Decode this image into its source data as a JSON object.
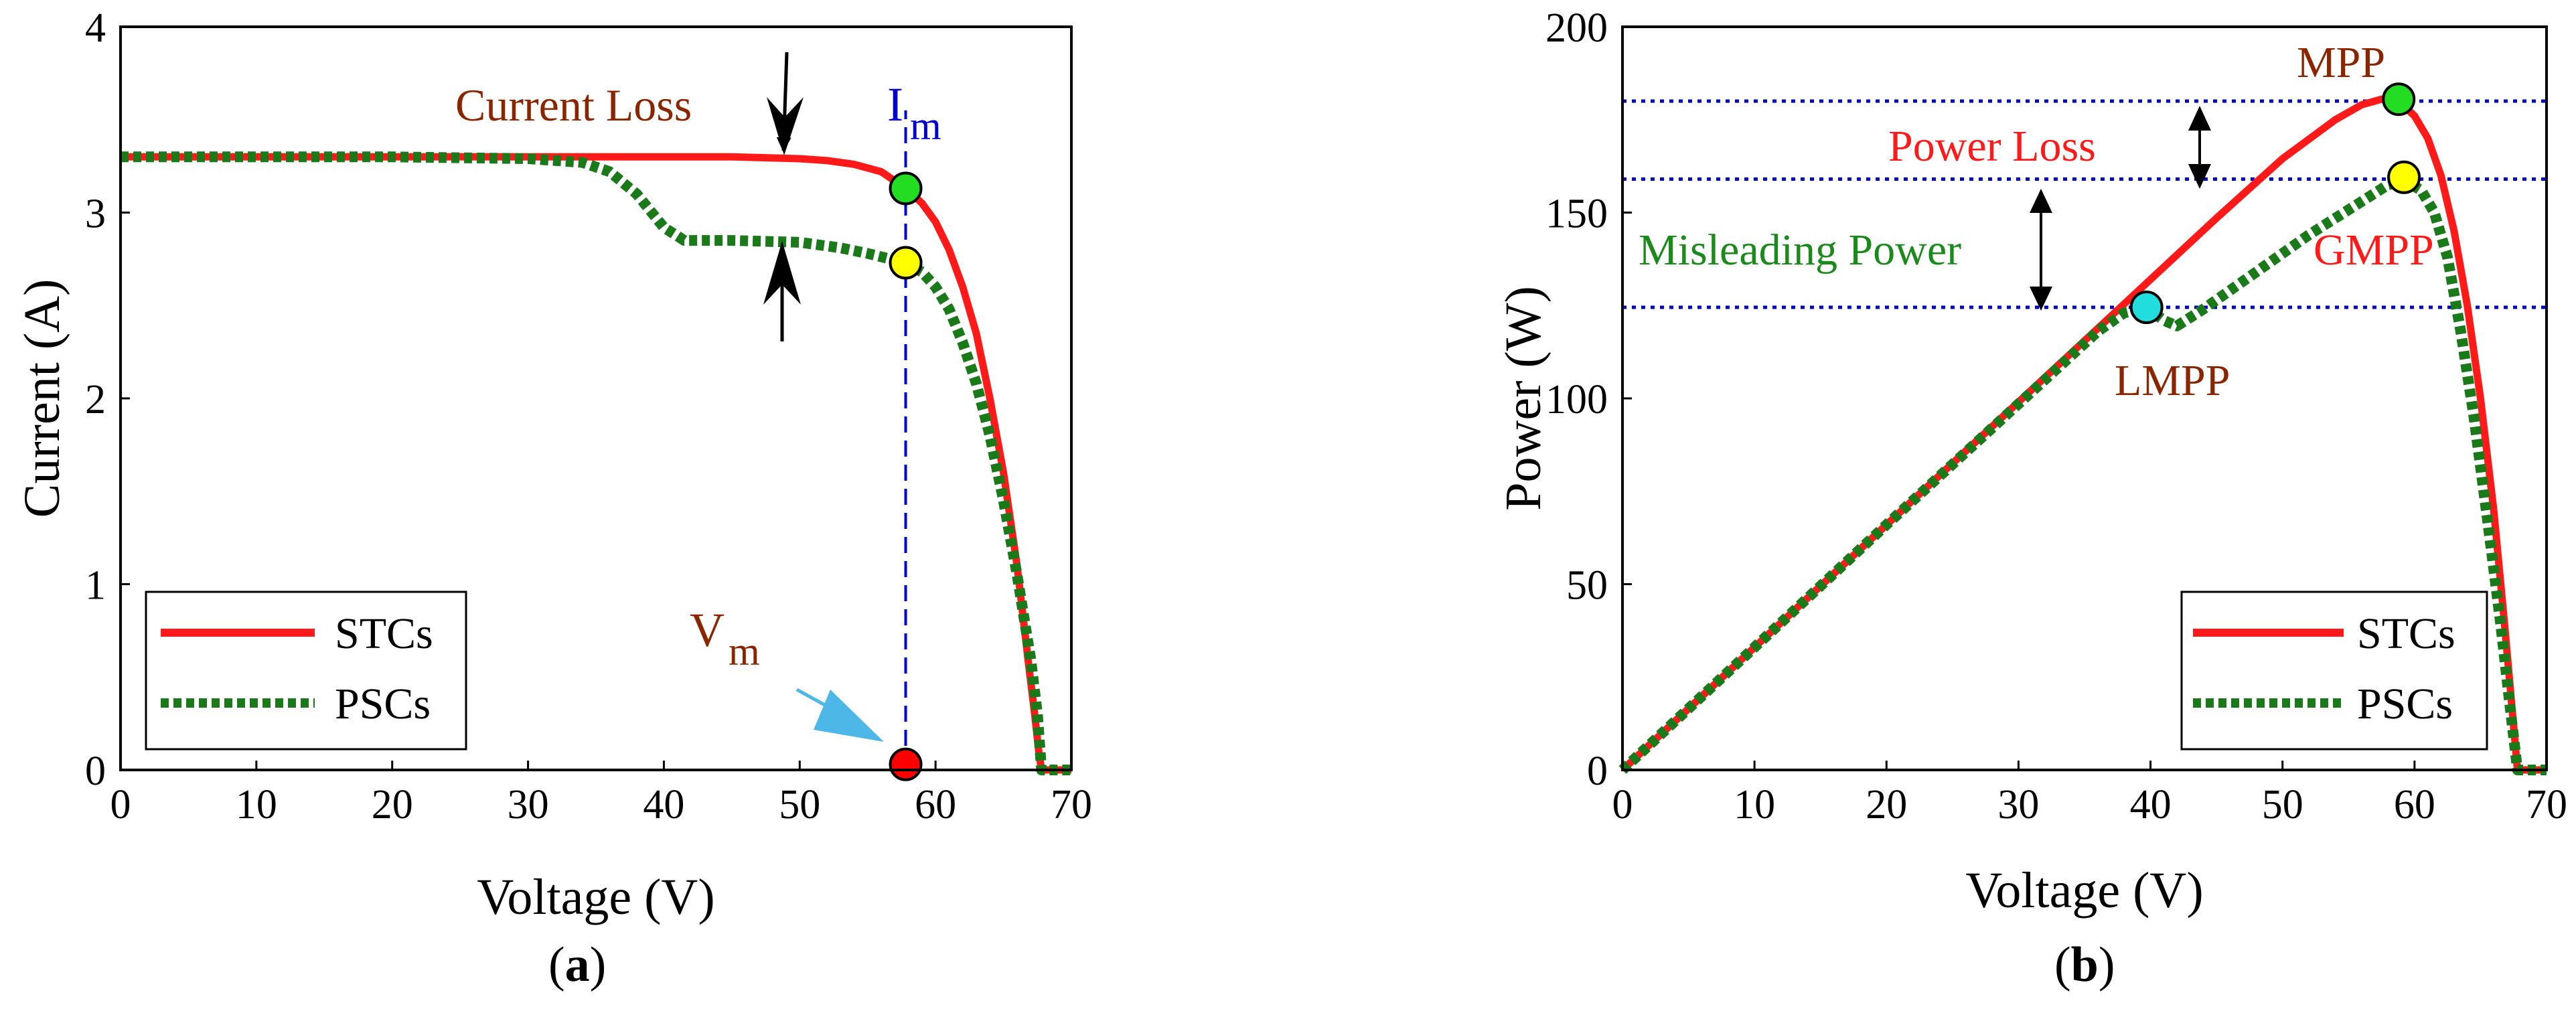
{
  "colors": {
    "stc": "#ff1a1a",
    "psc": "#1a7a1a",
    "reference": "#0000cc",
    "annotation_dark": "#8b2500",
    "annotation_red": "#ff1a1a",
    "annotation_green": "#1a8a1a",
    "arrow": "#000000",
    "arrow_light": "#4db8e8",
    "marker_green": "#22dd22",
    "marker_yellow": "#ffff00",
    "marker_red": "#ff0000",
    "marker_cyan": "#22dddd"
  },
  "chart_data": [
    {
      "id": "a",
      "type": "line",
      "caption": "(a)",
      "caption_letter": "a",
      "xlabel": "Voltage (V)",
      "ylabel": "Current (A)",
      "xlim": [
        0,
        70
      ],
      "ylim": [
        0,
        4
      ],
      "xticks": [
        "0",
        "10",
        "20",
        "30",
        "40",
        "50",
        "60",
        "70"
      ],
      "yticks": [
        "0",
        "1",
        "2",
        "3",
        "4"
      ],
      "legend": {
        "position": "bottom-left",
        "entries": [
          "STCs",
          "PSCs"
        ]
      },
      "series": [
        {
          "name": "STCs",
          "style": "solid",
          "x": [
            0,
            10,
            20,
            30,
            40,
            45,
            50,
            52,
            54,
            56,
            57.8,
            59,
            60,
            61,
            62,
            63,
            64,
            65,
            66,
            66.8,
            67.3,
            67.6,
            67.8,
            70
          ],
          "y": [
            3.3,
            3.3,
            3.3,
            3.3,
            3.3,
            3.3,
            3.29,
            3.28,
            3.26,
            3.22,
            3.13,
            3.05,
            2.95,
            2.8,
            2.6,
            2.35,
            2.0,
            1.6,
            1.1,
            0.6,
            0.3,
            0.1,
            0.0,
            0.0
          ]
        },
        {
          "name": "PSCs",
          "style": "dotted",
          "x": [
            0,
            10,
            20,
            30,
            34,
            36,
            38,
            40,
            41.5,
            45,
            50,
            53,
            55,
            57.8,
            59,
            60,
            61,
            62,
            63,
            64,
            65,
            66,
            67,
            67.5,
            67.8,
            70
          ],
          "y": [
            3.3,
            3.3,
            3.3,
            3.29,
            3.27,
            3.22,
            3.1,
            2.92,
            2.85,
            2.85,
            2.84,
            2.81,
            2.78,
            2.73,
            2.68,
            2.6,
            2.48,
            2.3,
            2.08,
            1.8,
            1.45,
            1.05,
            0.6,
            0.3,
            0.0,
            0.0
          ]
        }
      ],
      "points": [
        {
          "x": 57.8,
          "y": 3.13,
          "color": "#22dd22"
        },
        {
          "x": 57.8,
          "y": 2.73,
          "color": "#ffff00"
        },
        {
          "x": 57.8,
          "y": 0.03,
          "color": "#ff0000"
        }
      ],
      "vline": {
        "x": 57.8,
        "y0": 0,
        "y1": 3.55
      },
      "annotations": {
        "current_loss": "Current Loss",
        "im_main": "I",
        "im_sub": "m",
        "vm_main": "V",
        "vm_sub": "m"
      }
    },
    {
      "id": "b",
      "type": "line",
      "caption": "(b)",
      "caption_letter": "b",
      "xlabel": "Voltage (V)",
      "ylabel": "Power (W)",
      "xlim": [
        0,
        70
      ],
      "ylim": [
        0,
        200
      ],
      "xticks": [
        "0",
        "10",
        "20",
        "30",
        "40",
        "50",
        "60",
        "70"
      ],
      "yticks": [
        "0",
        "50",
        "100",
        "150",
        "200"
      ],
      "legend": {
        "position": "bottom-right",
        "entries": [
          "STCs",
          "PSCs"
        ]
      },
      "series": [
        {
          "name": "STCs",
          "style": "solid",
          "x": [
            0,
            10,
            20,
            30,
            40,
            45,
            50,
            54,
            56,
            57.5,
            58.8,
            60,
            61,
            62,
            63,
            64,
            65,
            66,
            66.8,
            67.3,
            67.8,
            70
          ],
          "y": [
            0,
            33,
            66,
            99,
            132,
            148.5,
            164.5,
            175,
            179,
            180.5,
            180,
            176,
            170,
            160,
            145,
            125,
            100,
            70,
            40,
            20,
            0,
            0
          ]
        },
        {
          "name": "PSCs",
          "style": "dotted",
          "x": [
            0,
            10,
            20,
            30,
            36,
            38,
            39.7,
            41,
            42,
            44,
            48,
            52,
            56,
            58,
            59.3,
            60.5,
            61.5,
            62.5,
            63.5,
            64.5,
            65.5,
            66.5,
            67.3,
            67.8,
            70
          ],
          "y": [
            0,
            33,
            66,
            98.5,
            118,
            123,
            124.5,
            121,
            119.5,
            124,
            134,
            144,
            153,
            157.5,
            158.5,
            156,
            150,
            138,
            118,
            95,
            68,
            40,
            15,
            0,
            0
          ]
        }
      ],
      "points": [
        {
          "x": 58.8,
          "y": 180.5,
          "color": "#22dd22"
        },
        {
          "x": 59.2,
          "y": 159.5,
          "color": "#ffff00"
        },
        {
          "x": 39.7,
          "y": 124.5,
          "color": "#22dddd"
        }
      ],
      "hlines": [
        180,
        159,
        124.5
      ],
      "annotations": {
        "mpp": "MPP",
        "power_loss": "Power Loss",
        "misleading_power": "Misleading Power",
        "gmpp": "GMPP",
        "lmpp": "LMPP"
      }
    }
  ]
}
